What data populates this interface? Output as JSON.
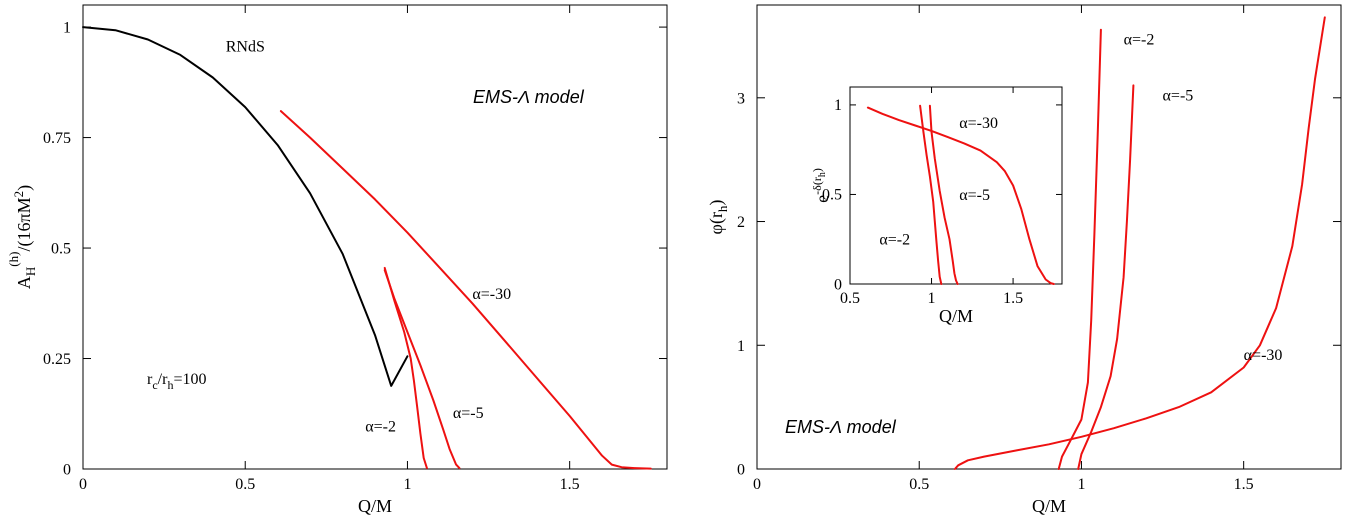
{
  "colors": {
    "curve_red": "#ee1111",
    "curve_black": "#000000"
  },
  "chart_data": [
    {
      "id": "left",
      "type": "line",
      "xlabel": "Q/M",
      "ylabel_parts": [
        "A",
        "H",
        "(h)",
        "/(16πM",
        "2",
        ")"
      ],
      "xlim": [
        0,
        1.8
      ],
      "ylim": [
        0,
        1.05
      ],
      "x_ticks": [
        0,
        0.5,
        1,
        1.5
      ],
      "x_tick_labels": [
        "0",
        "0.5",
        "1",
        "1.5"
      ],
      "y_ticks": [
        0,
        0.25,
        0.5,
        0.75,
        1
      ],
      "y_tick_labels": [
        "0",
        "0.25",
        "0.5",
        "0.75",
        "1"
      ],
      "model_label": "EMS-Λ model",
      "note": {
        "text_parts": [
          "r",
          "c",
          "/r",
          "h",
          "=100"
        ]
      },
      "series": [
        {
          "label": "RNdS",
          "color": "#000000",
          "x": [
            0,
            0.1,
            0.2,
            0.3,
            0.4,
            0.5,
            0.6,
            0.7,
            0.8,
            0.9,
            0.95,
            1.0
          ],
          "y": [
            1.0,
            0.993,
            0.972,
            0.937,
            0.886,
            0.819,
            0.733,
            0.624,
            0.487,
            0.303,
            0.188,
            0.255
          ]
        },
        {
          "label": "α=-30",
          "color": "#ee1111",
          "x": [
            0.61,
            0.7,
            0.8,
            0.9,
            1.0,
            1.1,
            1.2,
            1.3,
            1.4,
            1.5,
            1.55,
            1.6,
            1.63,
            1.66,
            1.7,
            1.75
          ],
          "y": [
            0.81,
            0.75,
            0.68,
            0.61,
            0.535,
            0.455,
            0.375,
            0.29,
            0.205,
            0.12,
            0.075,
            0.03,
            0.01,
            0.004,
            0.002,
            0.001
          ]
        },
        {
          "label": "α=-5",
          "color": "#ee1111",
          "x": [
            0.93,
            0.96,
            1.0,
            1.04,
            1.08,
            1.11,
            1.13,
            1.15,
            1.16
          ],
          "y": [
            0.45,
            0.385,
            0.31,
            0.235,
            0.155,
            0.09,
            0.045,
            0.01,
            0.002
          ]
        },
        {
          "label": "α=-2",
          "color": "#ee1111",
          "x": [
            0.93,
            0.96,
            0.99,
            1.01,
            1.02,
            1.03,
            1.04,
            1.05,
            1.06
          ],
          "y": [
            0.455,
            0.38,
            0.31,
            0.25,
            0.2,
            0.14,
            0.08,
            0.025,
            0.002
          ]
        }
      ],
      "labels": [
        {
          "text": "RNdS",
          "x": 0.44,
          "y": 0.945
        },
        {
          "text": "α=-30",
          "x": 1.2,
          "y": 0.385
        },
        {
          "text": "α=-5",
          "x": 1.14,
          "y": 0.115
        },
        {
          "text": "α=-2",
          "x": 0.87,
          "y": 0.085
        }
      ]
    },
    {
      "id": "right",
      "type": "line",
      "xlabel": "Q/M",
      "ylabel_parts": [
        "φ(r",
        "h",
        ")"
      ],
      "xlim": [
        0,
        1.8
      ],
      "ylim": [
        0,
        3.75
      ],
      "x_ticks": [
        0,
        0.5,
        1,
        1.5
      ],
      "x_tick_labels": [
        "0",
        "0.5",
        "1",
        "1.5"
      ],
      "y_ticks": [
        0,
        1,
        2,
        3
      ],
      "y_tick_labels": [
        "0",
        "1",
        "2",
        "3"
      ],
      "model_label": "EMS-Λ model",
      "series": [
        {
          "label": "α=-30",
          "color": "#ee1111",
          "x": [
            0.61,
            0.62,
            0.65,
            0.7,
            0.8,
            0.9,
            1.0,
            1.1,
            1.2,
            1.3,
            1.4,
            1.5,
            1.55,
            1.6,
            1.65,
            1.68,
            1.7,
            1.72,
            1.75
          ],
          "y": [
            0.0,
            0.03,
            0.07,
            0.1,
            0.15,
            0.2,
            0.26,
            0.33,
            0.41,
            0.5,
            0.62,
            0.82,
            1.0,
            1.3,
            1.8,
            2.3,
            2.75,
            3.15,
            3.65
          ]
        },
        {
          "label": "α=-5",
          "color": "#ee1111",
          "x": [
            0.99,
            1.0,
            1.03,
            1.06,
            1.09,
            1.11,
            1.13,
            1.14,
            1.15,
            1.16
          ],
          "y": [
            0.0,
            0.12,
            0.3,
            0.5,
            0.75,
            1.05,
            1.55,
            2.0,
            2.5,
            3.1
          ]
        },
        {
          "label": "α=-2",
          "color": "#ee1111",
          "x": [
            0.93,
            0.94,
            0.96,
            0.98,
            1.0,
            1.02,
            1.03,
            1.04,
            1.05,
            1.06
          ],
          "y": [
            0.0,
            0.1,
            0.2,
            0.3,
            0.4,
            0.7,
            1.2,
            1.9,
            2.7,
            3.55
          ]
        }
      ],
      "labels": [
        {
          "text": "α=-2",
          "x": 1.13,
          "y": 3.43
        },
        {
          "text": "α=-5",
          "x": 1.25,
          "y": 2.98
        },
        {
          "text": "α=-30",
          "x": 1.5,
          "y": 0.88
        }
      ],
      "inset": {
        "xlabel": "Q/M",
        "ylabel_parts": [
          "e",
          "-δ(r",
          "h",
          ")"
        ],
        "xlim": [
          0.5,
          1.8
        ],
        "ylim": [
          0,
          1.1
        ],
        "x_ticks": [
          0.5,
          1,
          1.5
        ],
        "x_tick_labels": [
          "0.5",
          "1",
          "1.5"
        ],
        "y_ticks": [
          0,
          0.5,
          1
        ],
        "y_tick_labels": [
          "0",
          "0.5",
          "1"
        ],
        "series": [
          {
            "label": "α=-30",
            "color": "#ee1111",
            "x": [
              0.61,
              0.7,
              0.8,
              0.9,
              1.0,
              1.1,
              1.2,
              1.3,
              1.4,
              1.45,
              1.5,
              1.55,
              1.6,
              1.65,
              1.7,
              1.73,
              1.75
            ],
            "y": [
              0.985,
              0.95,
              0.915,
              0.885,
              0.855,
              0.82,
              0.785,
              0.745,
              0.68,
              0.63,
              0.55,
              0.42,
              0.25,
              0.1,
              0.025,
              0.005,
              0.0
            ]
          },
          {
            "label": "α=-5",
            "color": "#ee1111",
            "x": [
              0.99,
              1.0,
              1.02,
              1.05,
              1.08,
              1.11,
              1.13,
              1.14,
              1.15,
              1.16
            ],
            "y": [
              0.995,
              0.85,
              0.7,
              0.52,
              0.37,
              0.25,
              0.13,
              0.06,
              0.02,
              0.0
            ]
          },
          {
            "label": "α=-2",
            "color": "#ee1111",
            "x": [
              0.93,
              0.95,
              0.97,
              0.99,
              1.01,
              1.02,
              1.03,
              1.04,
              1.05,
              1.06
            ],
            "y": [
              0.995,
              0.85,
              0.72,
              0.6,
              0.46,
              0.35,
              0.24,
              0.13,
              0.04,
              0.0
            ]
          }
        ],
        "labels": [
          {
            "text": "α=-30",
            "x": 1.17,
            "y": 0.87
          },
          {
            "text": "α=-5",
            "x": 1.17,
            "y": 0.47
          },
          {
            "text": "α=-2",
            "x": 0.68,
            "y": 0.22
          }
        ]
      }
    }
  ]
}
